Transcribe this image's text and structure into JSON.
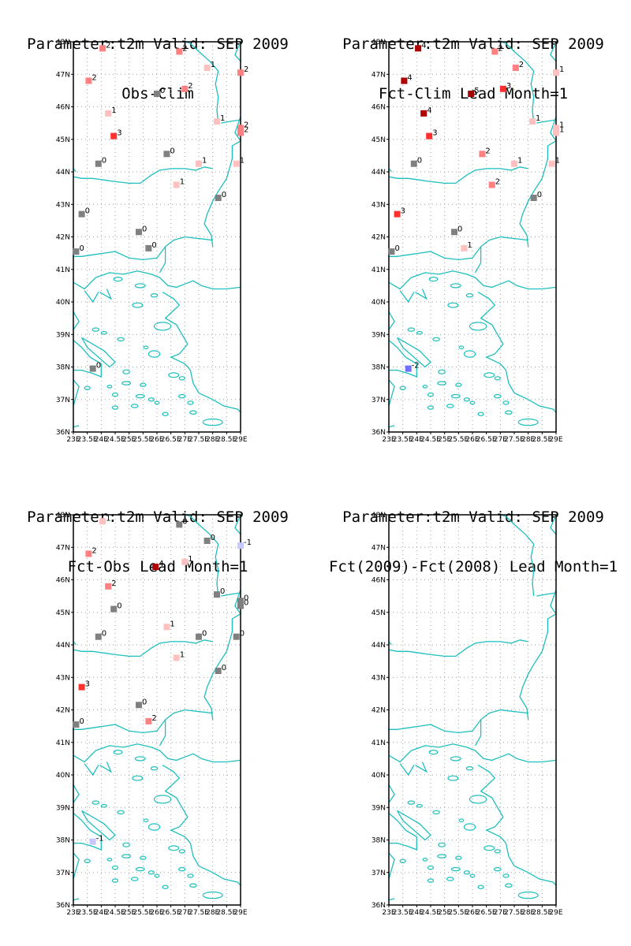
{
  "panels": [
    {
      "title_line1": "Parameter:t2m Valid: SEP 2009",
      "title_line2": "Obs-Clim",
      "stations": [
        {
          "lon": 24.05,
          "lat": 47.8,
          "value": "2"
        },
        {
          "lon": 26.8,
          "lat": 47.7,
          "value": "2"
        },
        {
          "lon": 27.8,
          "lat": 47.2,
          "value": "1"
        },
        {
          "lon": 29.0,
          "lat": 47.05,
          "value": "2"
        },
        {
          "lon": 23.55,
          "lat": 46.8,
          "value": "2"
        },
        {
          "lon": 27.0,
          "lat": 46.55,
          "value": "2"
        },
        {
          "lon": 26.0,
          "lat": 46.4,
          "value": "0"
        },
        {
          "lon": 24.25,
          "lat": 45.8,
          "value": "1"
        },
        {
          "lon": 28.15,
          "lat": 45.55,
          "value": "1"
        },
        {
          "lon": 29.0,
          "lat": 45.35,
          "value": "2"
        },
        {
          "lon": 29.0,
          "lat": 45.2,
          "value": "2"
        },
        {
          "lon": 24.45,
          "lat": 45.1,
          "value": "3"
        },
        {
          "lon": 26.35,
          "lat": 44.55,
          "value": "0"
        },
        {
          "lon": 23.9,
          "lat": 44.25,
          "value": "0"
        },
        {
          "lon": 27.5,
          "lat": 44.25,
          "value": "1"
        },
        {
          "lon": 28.85,
          "lat": 44.25,
          "value": "1"
        },
        {
          "lon": 26.7,
          "lat": 43.6,
          "value": "1"
        },
        {
          "lon": 28.2,
          "lat": 43.2,
          "value": "0"
        },
        {
          "lon": 23.3,
          "lat": 42.7,
          "value": "0"
        },
        {
          "lon": 25.35,
          "lat": 42.15,
          "value": "0"
        },
        {
          "lon": 25.7,
          "lat": 41.65,
          "value": "0"
        },
        {
          "lon": 23.1,
          "lat": 41.55,
          "value": "0"
        },
        {
          "lon": 23.7,
          "lat": 37.95,
          "value": "0"
        }
      ]
    },
    {
      "title_line1": "Parameter:t2m Valid: SEP 2009",
      "title_line2": "Fct-Clim Lead Month=1",
      "stations": [
        {
          "lon": 24.05,
          "lat": 47.8,
          "value": "4"
        },
        {
          "lon": 26.8,
          "lat": 47.7,
          "value": "2"
        },
        {
          "lon": 27.55,
          "lat": 47.2,
          "value": "2"
        },
        {
          "lon": 29.0,
          "lat": 47.05,
          "value": "1"
        },
        {
          "lon": 23.55,
          "lat": 46.8,
          "value": "4"
        },
        {
          "lon": 27.1,
          "lat": 46.55,
          "value": "3"
        },
        {
          "lon": 25.95,
          "lat": 46.4,
          "value": "5"
        },
        {
          "lon": 24.25,
          "lat": 45.8,
          "value": "4"
        },
        {
          "lon": 28.15,
          "lat": 45.55,
          "value": "1"
        },
        {
          "lon": 29.0,
          "lat": 45.35,
          "value": "1"
        },
        {
          "lon": 29.0,
          "lat": 45.2,
          "value": "1"
        },
        {
          "lon": 24.45,
          "lat": 45.1,
          "value": "3"
        },
        {
          "lon": 26.35,
          "lat": 44.55,
          "value": "2"
        },
        {
          "lon": 23.9,
          "lat": 44.25,
          "value": "0"
        },
        {
          "lon": 27.5,
          "lat": 44.25,
          "value": "1"
        },
        {
          "lon": 28.85,
          "lat": 44.25,
          "value": "1"
        },
        {
          "lon": 26.7,
          "lat": 43.6,
          "value": "2"
        },
        {
          "lon": 28.2,
          "lat": 43.2,
          "value": "0"
        },
        {
          "lon": 23.3,
          "lat": 42.7,
          "value": "3"
        },
        {
          "lon": 25.35,
          "lat": 42.15,
          "value": "0"
        },
        {
          "lon": 25.7,
          "lat": 41.65,
          "value": "1"
        },
        {
          "lon": 23.1,
          "lat": 41.55,
          "value": "0"
        },
        {
          "lon": 23.7,
          "lat": 37.95,
          "value": "-2"
        }
      ]
    },
    {
      "title_line1": "Parameter:t2m Valid: SEP 2009",
      "title_line2": "Fct-Obs Lead Month=1",
      "stations": [
        {
          "lon": 24.05,
          "lat": 47.8,
          "value": "1"
        },
        {
          "lon": 26.8,
          "lat": 47.7,
          "value": "0"
        },
        {
          "lon": 27.8,
          "lat": 47.2,
          "value": "0"
        },
        {
          "lon": 29.0,
          "lat": 47.05,
          "value": "-1"
        },
        {
          "lon": 23.55,
          "lat": 46.8,
          "value": "2"
        },
        {
          "lon": 27.0,
          "lat": 46.55,
          "value": "1"
        },
        {
          "lon": 25.95,
          "lat": 46.4,
          "value": "4"
        },
        {
          "lon": 24.25,
          "lat": 45.8,
          "value": "2"
        },
        {
          "lon": 28.15,
          "lat": 45.55,
          "value": "0"
        },
        {
          "lon": 29.0,
          "lat": 45.35,
          "value": "0"
        },
        {
          "lon": 29.0,
          "lat": 45.2,
          "value": "0"
        },
        {
          "lon": 24.45,
          "lat": 45.1,
          "value": "0"
        },
        {
          "lon": 26.35,
          "lat": 44.55,
          "value": "1"
        },
        {
          "lon": 23.9,
          "lat": 44.25,
          "value": "0"
        },
        {
          "lon": 27.5,
          "lat": 44.25,
          "value": "0"
        },
        {
          "lon": 28.85,
          "lat": 44.25,
          "value": "0"
        },
        {
          "lon": 26.7,
          "lat": 43.6,
          "value": "1"
        },
        {
          "lon": 28.2,
          "lat": 43.2,
          "value": "0"
        },
        {
          "lon": 23.3,
          "lat": 42.7,
          "value": "3"
        },
        {
          "lon": 25.35,
          "lat": 42.15,
          "value": "0"
        },
        {
          "lon": 25.7,
          "lat": 41.65,
          "value": "2"
        },
        {
          "lon": 23.1,
          "lat": 41.55,
          "value": "0"
        },
        {
          "lon": 23.7,
          "lat": 37.95,
          "value": "-1"
        }
      ]
    },
    {
      "title_line1": "Parameter:t2m Valid: SEP 2009",
      "title_line2": "Fct(2009)-Fct(2008) Lead Month=1",
      "stations": []
    }
  ],
  "axes": {
    "lat_labels": [
      "48N",
      "47N",
      "46N",
      "45N",
      "44N",
      "43N",
      "42N",
      "41N",
      "40N",
      "39N",
      "38N",
      "37N",
      "36N"
    ],
    "lat_values": [
      48,
      47,
      46,
      45,
      44,
      43,
      42,
      41,
      40,
      39,
      38,
      37,
      36
    ],
    "lon_labels": [
      "23E",
      "23.5E",
      "24E",
      "24.5E",
      "25E",
      "25.5E",
      "26E",
      "26.5E",
      "27E",
      "27.5E",
      "28E",
      "28.5E",
      "29E"
    ],
    "lon_values": [
      23,
      23.5,
      24,
      24.5,
      25,
      25.5,
      26,
      26.5,
      27,
      27.5,
      28,
      28.5,
      29
    ],
    "lon_range": [
      23,
      29
    ],
    "lat_range": [
      36,
      48
    ]
  },
  "colors": {
    "coastline": "#1fbfbf",
    "grid": "#a0a0a0",
    "frame": "#000000",
    "value_scale": {
      "-2": "#7070ff",
      "-1": "#c8c8ff",
      "0": "#808080",
      "1": "#ffc0c0",
      "2": "#ff8080",
      "3": "#ff3030",
      "4": "#b00000",
      "5": "#a00000"
    }
  }
}
